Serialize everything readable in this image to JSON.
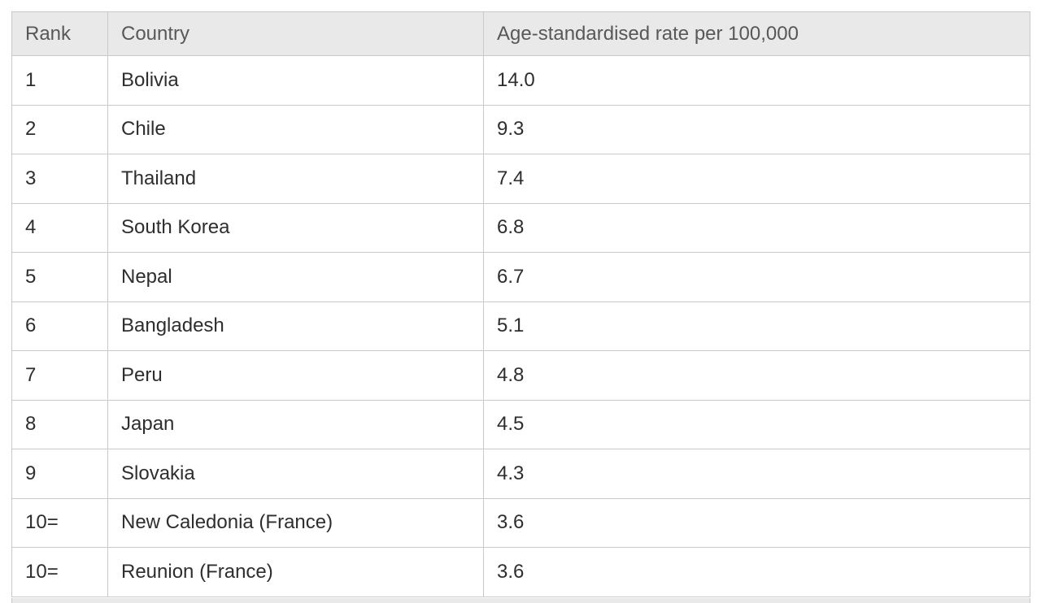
{
  "colors": {
    "header_bg": "#e9e9e9",
    "border": "#c9c9c9",
    "header_text": "#58585a",
    "cell_text": "#2e2e30"
  },
  "chart_data": {
    "type": "table",
    "title": "",
    "columns": [
      "Rank",
      "Country",
      "Age-standardised rate per 100,000"
    ],
    "rows": [
      [
        "1",
        "Bolivia",
        "14.0"
      ],
      [
        "2",
        "Chile",
        "9.3"
      ],
      [
        "3",
        "Thailand",
        "7.4"
      ],
      [
        "4",
        "South Korea",
        "6.8"
      ],
      [
        "5",
        "Nepal",
        "6.7"
      ],
      [
        "6",
        "Bangladesh",
        "5.1"
      ],
      [
        "7",
        "Peru",
        "4.8"
      ],
      [
        "8",
        "Japan",
        "4.5"
      ],
      [
        "9",
        "Slovakia",
        "4.3"
      ],
      [
        "10=",
        "New Caledonia (France)",
        "3.6"
      ],
      [
        "10=",
        "Reunion (France)",
        "3.6"
      ]
    ]
  }
}
